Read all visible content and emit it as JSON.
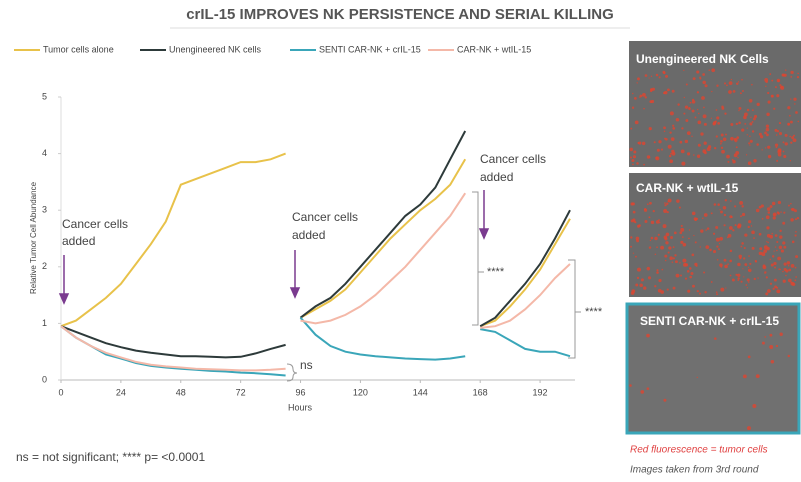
{
  "chart_data": {
    "type": "line",
    "title": "crIL-15 IMPROVES NK PERSISTENCE AND SERIAL KILLING",
    "x_label": "Hours",
    "y_label": "Relative Tumor Cell Abundance",
    "x": [
      0,
      6,
      12,
      18,
      24,
      30,
      36,
      42,
      48,
      54,
      60,
      66,
      72,
      78,
      84,
      90,
      93,
      96,
      102,
      108,
      114,
      120,
      126,
      132,
      138,
      144,
      150,
      156,
      162,
      165,
      168,
      174,
      180,
      186,
      192,
      198,
      204
    ],
    "series": [
      {
        "name": "Tumor cells alone",
        "color": "#e8c24a",
        "values": [
          0.95,
          1.05,
          1.25,
          1.45,
          1.7,
          2.05,
          2.4,
          2.8,
          3.45,
          3.55,
          3.65,
          3.75,
          3.85,
          3.85,
          3.9,
          4.0,
          null,
          1.1,
          1.25,
          1.4,
          1.6,
          1.9,
          2.2,
          2.5,
          2.75,
          3.0,
          3.2,
          3.45,
          3.9,
          null,
          0.95,
          1.05,
          1.3,
          1.6,
          1.95,
          2.4,
          2.85
        ]
      },
      {
        "name": "Unengineered NK cells",
        "color": "#2d3a3a",
        "values": [
          0.95,
          0.85,
          0.75,
          0.65,
          0.58,
          0.52,
          0.48,
          0.45,
          0.42,
          0.42,
          0.41,
          0.4,
          0.41,
          0.47,
          0.55,
          0.62,
          null,
          1.1,
          1.3,
          1.45,
          1.7,
          2.0,
          2.3,
          2.6,
          2.9,
          3.1,
          3.4,
          3.9,
          4.4,
          null,
          0.95,
          1.1,
          1.4,
          1.7,
          2.05,
          2.5,
          3.0
        ]
      },
      {
        "name": "SENTI CAR-NK + crIL-15",
        "color": "#3aa6b9",
        "values": [
          0.95,
          0.75,
          0.6,
          0.45,
          0.38,
          0.3,
          0.25,
          0.22,
          0.2,
          0.18,
          0.16,
          0.15,
          0.13,
          0.12,
          0.1,
          0.08,
          null,
          1.1,
          0.8,
          0.6,
          0.5,
          0.45,
          0.42,
          0.4,
          0.38,
          0.37,
          0.36,
          0.38,
          0.42,
          null,
          0.9,
          0.85,
          0.7,
          0.55,
          0.5,
          0.5,
          0.42
        ]
      },
      {
        "name": "CAR-NK + wtIL-15",
        "color": "#f4b8a8",
        "values": [
          0.95,
          0.75,
          0.6,
          0.48,
          0.4,
          0.32,
          0.27,
          0.24,
          0.22,
          0.2,
          0.19,
          0.18,
          0.17,
          0.17,
          0.18,
          0.2,
          null,
          1.05,
          1.0,
          1.05,
          1.15,
          1.3,
          1.5,
          1.75,
          2.0,
          2.3,
          2.6,
          2.9,
          3.3,
          null,
          0.92,
          0.95,
          1.05,
          1.25,
          1.5,
          1.8,
          2.05
        ]
      }
    ],
    "xlim": [
      0,
      206
    ],
    "ylim": [
      0,
      5
    ],
    "xticks": [
      0,
      24,
      48,
      72,
      96,
      120,
      144,
      168,
      192
    ],
    "yticks": [
      0,
      1,
      2,
      3,
      4,
      5
    ],
    "annotations": [
      {
        "lines": [
          "Cancer cells",
          "added"
        ]
      },
      {
        "lines": [
          "Cancer cells",
          "added"
        ]
      },
      {
        "lines": [
          "Cancer cells",
          "added"
        ]
      },
      {
        "text": "ns"
      },
      {
        "text": "****"
      },
      {
        "text": "****"
      }
    ],
    "footnote": "ns = not significant; **** p= <0.0001",
    "panels": [
      "Unengineered NK Cells",
      "CAR-NK + wtIL-15",
      "SENTI CAR-NK + crIL-15"
    ],
    "captions": [
      "Red fluorescence = tumor cells",
      "Images taken from 3rd round"
    ]
  }
}
